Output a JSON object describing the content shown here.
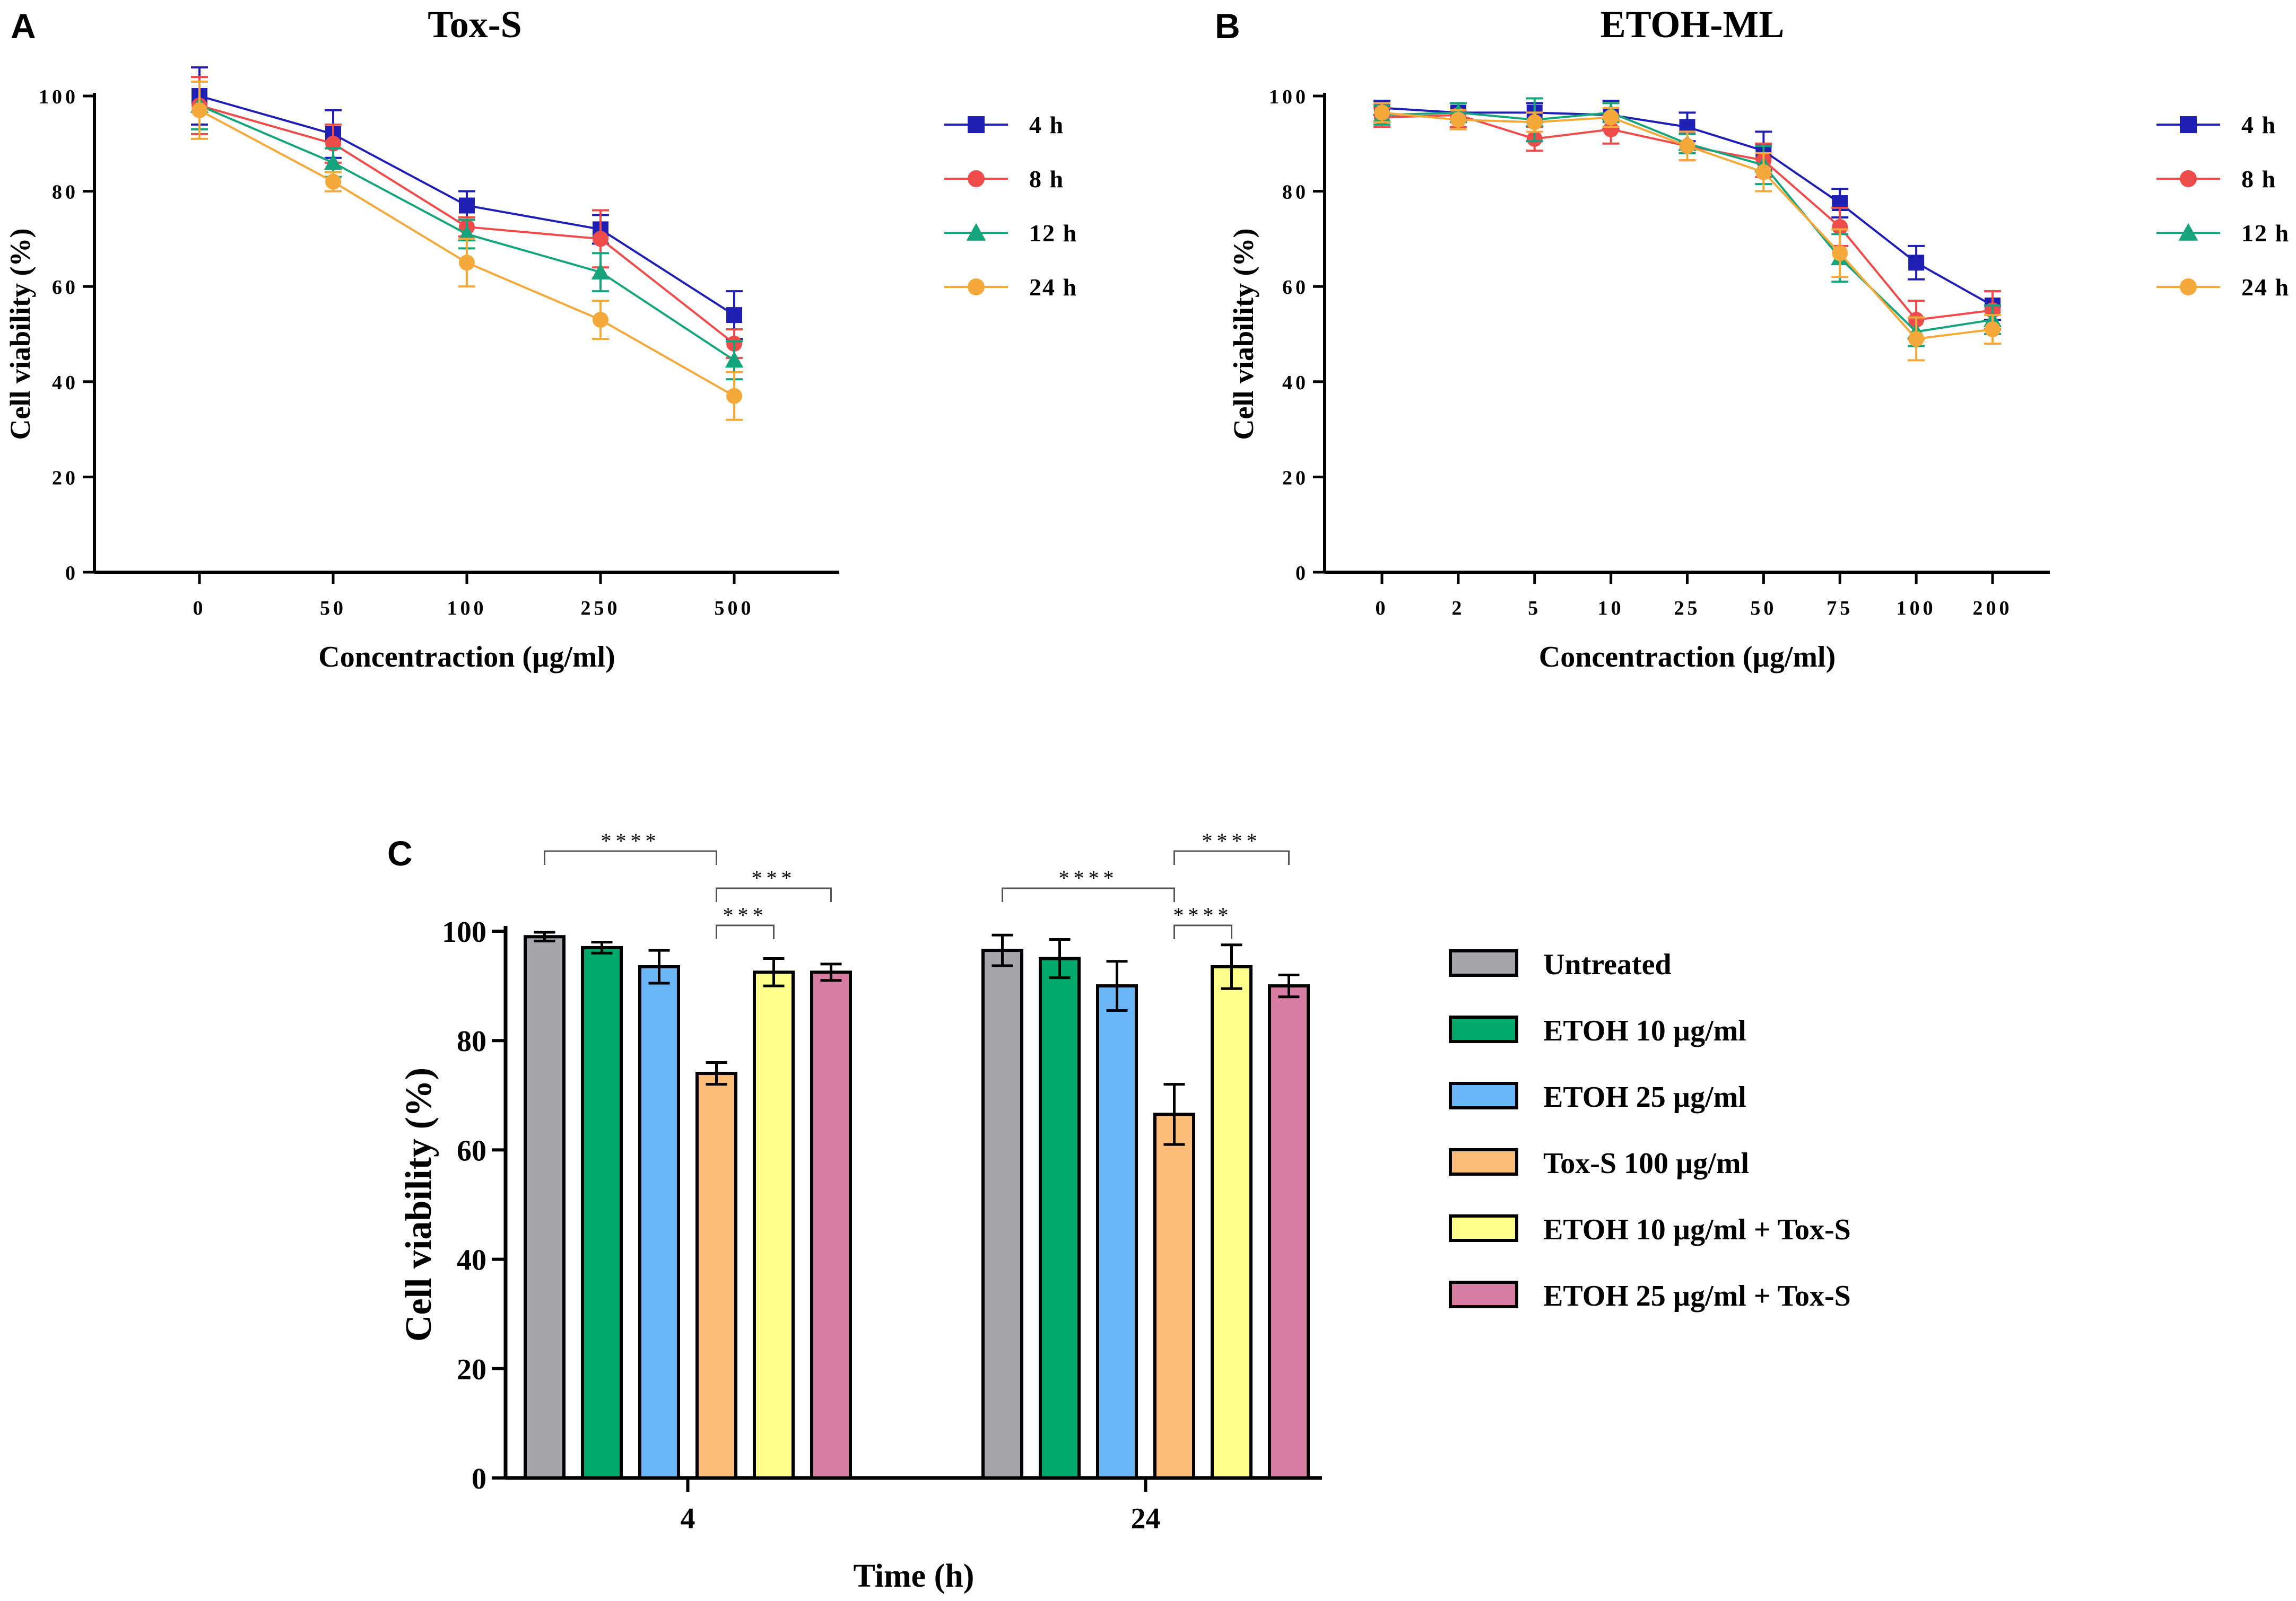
{
  "panels": {
    "A": {
      "letter": "A"
    },
    "B": {
      "letter": "B"
    },
    "C": {
      "letter": "C"
    }
  },
  "colors": {
    "4h": "#1f1fb4",
    "8h": "#ee4b4b",
    "12h": "#16a47c",
    "24h": "#f4a93a"
  },
  "chart_data": [
    {
      "id": "A",
      "type": "line",
      "title": "Tox-S",
      "xlabel": "Concentraction (µg/ml)",
      "ylabel": "Cell viability (%)",
      "categories": [
        "0",
        "50",
        "100",
        "250",
        "500"
      ],
      "ylim": [
        0,
        100
      ],
      "yticks": [
        "0",
        "20",
        "40",
        "60",
        "80",
        "100"
      ],
      "legend_position": "right",
      "series": [
        {
          "name": "4 h",
          "key": "4h",
          "marker": "square",
          "values": [
            100,
            92,
            77,
            72,
            54
          ],
          "errors": [
            6,
            5,
            3,
            3,
            5
          ]
        },
        {
          "name": "8 h",
          "key": "8h",
          "marker": "circle",
          "values": [
            98,
            90,
            72.5,
            70,
            48
          ],
          "errors": [
            6,
            4,
            2,
            6,
            3
          ]
        },
        {
          "name": "12 h",
          "key": "12h",
          "marker": "triangle",
          "values": [
            98,
            86,
            71,
            63,
            44.5
          ],
          "errors": [
            5,
            3,
            3,
            4,
            4
          ]
        },
        {
          "name": "24 h",
          "key": "24h",
          "marker": "circle",
          "values": [
            97,
            82,
            65,
            53,
            37
          ],
          "errors": [
            6,
            2,
            5,
            4,
            5
          ]
        }
      ]
    },
    {
      "id": "B",
      "type": "line",
      "title": "ETOH-ML",
      "xlabel": "Concentraction (µg/ml)",
      "ylabel": "Cell viability (%)",
      "categories": [
        "0",
        "2",
        "5",
        "10",
        "25",
        "50",
        "75",
        "100",
        "200"
      ],
      "ylim": [
        0,
        100
      ],
      "yticks": [
        "0",
        "20",
        "40",
        "60",
        "80",
        "100"
      ],
      "legend_position": "right",
      "series": [
        {
          "name": "4 h",
          "key": "4h",
          "marker": "square",
          "values": [
            97.5,
            96.5,
            96.5,
            96,
            93.5,
            88.5,
            77.5,
            65,
            56
          ],
          "errors": [
            1.5,
            2,
            2,
            3,
            3,
            4,
            3,
            3.5,
            3
          ]
        },
        {
          "name": "8 h",
          "key": "8h",
          "marker": "circle",
          "values": [
            95.5,
            96,
            91,
            93,
            89.5,
            86.5,
            72.5,
            53,
            55
          ],
          "errors": [
            2,
            2.5,
            2.5,
            3,
            3,
            3.5,
            4,
            4,
            4
          ]
        },
        {
          "name": "12 h",
          "key": "12h",
          "marker": "triangle",
          "values": [
            96,
            96.5,
            95,
            96.5,
            90,
            85.5,
            66,
            50.5,
            53
          ],
          "errors": [
            2,
            2,
            4.5,
            2,
            2,
            4,
            5,
            3,
            3
          ]
        },
        {
          "name": "24 h",
          "key": "24h",
          "marker": "circle",
          "values": [
            96.5,
            95,
            94.5,
            95.5,
            89.5,
            84,
            67,
            49,
            51
          ],
          "errors": [
            2,
            2,
            2,
            2,
            3,
            4,
            5,
            4.5,
            3
          ]
        }
      ]
    },
    {
      "id": "C",
      "type": "bar",
      "title": "",
      "xlabel": "Time (h)",
      "ylabel": "Cell viability (%)",
      "categories": [
        "4",
        "24"
      ],
      "ylim": [
        0,
        100
      ],
      "yticks": [
        "0",
        "20",
        "40",
        "60",
        "80",
        "100"
      ],
      "legend_position": "right",
      "series": [
        {
          "name": "Untreated",
          "color": "#a6a6aa",
          "values": [
            99,
            96.5
          ],
          "errors": [
            0.8,
            2.8
          ]
        },
        {
          "name": "ETOH 10 µg/ml",
          "color": "#00a86b",
          "values": [
            97,
            95
          ],
          "errors": [
            1,
            3.5
          ]
        },
        {
          "name": "ETOH 25 µg/ml",
          "color": "#6bb6f6",
          "values": [
            93.5,
            90
          ],
          "errors": [
            3,
            4.5
          ]
        },
        {
          "name": "Tox-S 100 µg/ml",
          "color": "#fbbd78",
          "values": [
            74,
            66.5
          ],
          "errors": [
            2,
            5.5
          ]
        },
        {
          "name": "ETOH 10 µg/ml + Tox-S",
          "color": "#fefe8c",
          "values": [
            92.5,
            93.5
          ],
          "errors": [
            2.5,
            4
          ]
        },
        {
          "name": "ETOH 25 µg/ml + Tox-S",
          "color": "#d77ca3",
          "values": [
            92.5,
            90
          ],
          "errors": [
            1.5,
            2
          ]
        }
      ],
      "significance": [
        {
          "group": 0,
          "from": 0,
          "to": 3,
          "label": "****",
          "level": 3
        },
        {
          "group": 0,
          "from": 3,
          "to": 5,
          "label": "***",
          "level": 2
        },
        {
          "group": 0,
          "from": 3,
          "to": 4,
          "label": "***",
          "level": 1
        },
        {
          "group": 1,
          "from": 0,
          "to": 3,
          "label": "****",
          "level": 2
        },
        {
          "group": 1,
          "from": 3,
          "to": 5,
          "label": "****",
          "level": 3
        },
        {
          "group": 1,
          "from": 3,
          "to": 4,
          "label": "****",
          "level": 1
        }
      ]
    }
  ]
}
